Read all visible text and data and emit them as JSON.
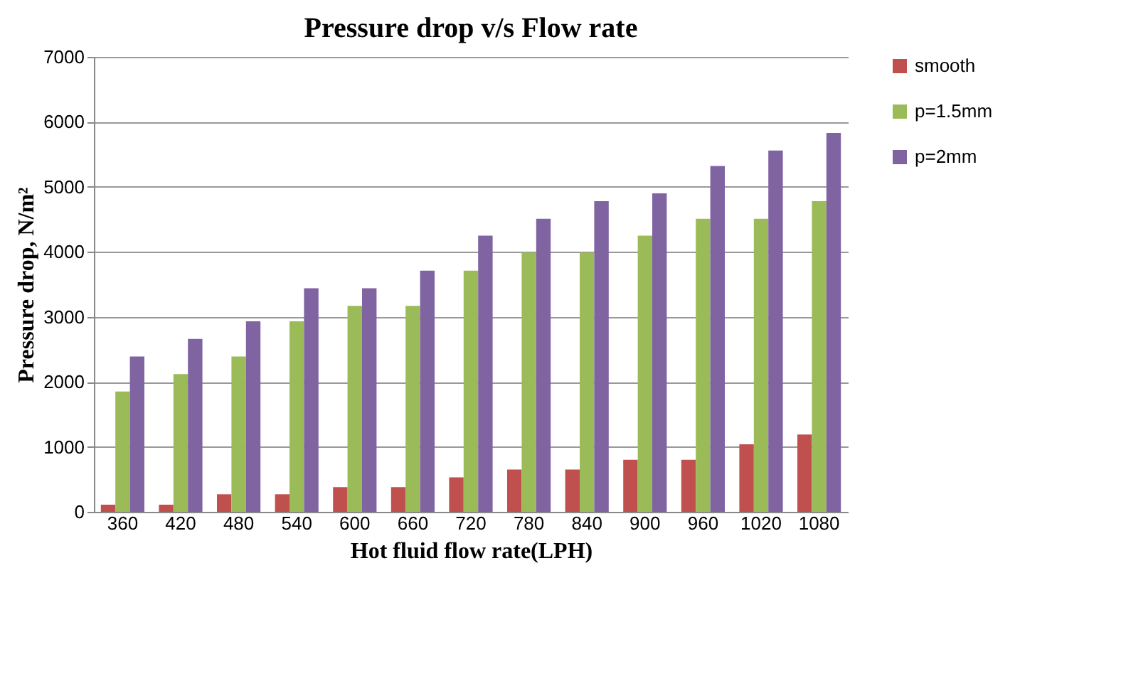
{
  "chart_data": {
    "type": "bar",
    "title": "Pressure drop v/s Flow rate",
    "xlabel": "Hot fluid  flow rate(LPH)",
    "ylabel": "Pressure drop,  N/m²",
    "categories": [
      "360",
      "420",
      "480",
      "540",
      "600",
      "660",
      "720",
      "780",
      "840",
      "900",
      "960",
      "1020",
      "1080"
    ],
    "series": [
      {
        "name": "smooth",
        "color": "#c0504d",
        "values": [
          110,
          110,
          270,
          270,
          380,
          380,
          530,
          650,
          650,
          800,
          800,
          1040,
          1190
        ]
      },
      {
        "name": "p=1.5mm",
        "color": "#9bbb59",
        "values": [
          1850,
          2120,
          2390,
          2930,
          3170,
          3170,
          3710,
          3990,
          3990,
          4250,
          4510,
          4510,
          4780
        ]
      },
      {
        "name": "p=2mm",
        "color": "#8064a2",
        "values": [
          2390,
          2660,
          2930,
          3440,
          3440,
          3710,
          4250,
          4510,
          4780,
          4900,
          5320,
          5560,
          5830
        ]
      }
    ],
    "ylim": [
      0,
      7000
    ],
    "yticks": [
      0,
      1000,
      2000,
      3000,
      4000,
      5000,
      6000,
      7000
    ],
    "grid": "y",
    "legend": "right"
  }
}
